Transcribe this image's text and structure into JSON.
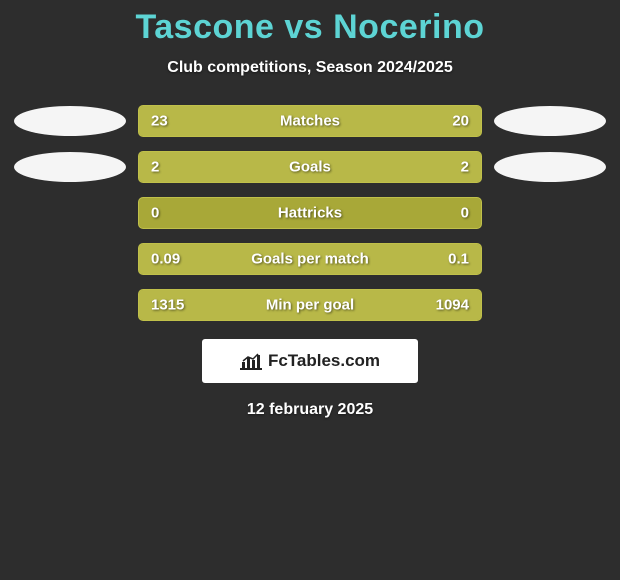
{
  "title": "Tascone vs Nocerino",
  "subtitle": "Club competitions, Season 2024/2025",
  "date": "12 february 2025",
  "logo_text": "FcTables.com",
  "colors": {
    "background": "#2d2d2d",
    "title": "#5dd4d4",
    "bar_bg": "#a8a838",
    "bar_fill": "#b8b848",
    "bar_border": "#c0c04a",
    "text": "#ffffff",
    "ellipse_left": "#f5f5f5",
    "ellipse_right": "#f5f5f5"
  },
  "stats": [
    {
      "label": "Matches",
      "left_value": "23",
      "right_value": "20",
      "left_fill_pct": 53.5,
      "right_fill_pct": 46.5,
      "show_ellipse": true
    },
    {
      "label": "Goals",
      "left_value": "2",
      "right_value": "2",
      "left_fill_pct": 50,
      "right_fill_pct": 50,
      "show_ellipse": true
    },
    {
      "label": "Hattricks",
      "left_value": "0",
      "right_value": "0",
      "left_fill_pct": 0,
      "right_fill_pct": 0,
      "show_ellipse": false
    },
    {
      "label": "Goals per match",
      "left_value": "0.09",
      "right_value": "0.1",
      "left_fill_pct": 47,
      "right_fill_pct": 53,
      "show_ellipse": false
    },
    {
      "label": "Min per goal",
      "left_value": "1315",
      "right_value": "1094",
      "left_fill_pct": 54.6,
      "right_fill_pct": 45.4,
      "show_ellipse": false
    }
  ]
}
